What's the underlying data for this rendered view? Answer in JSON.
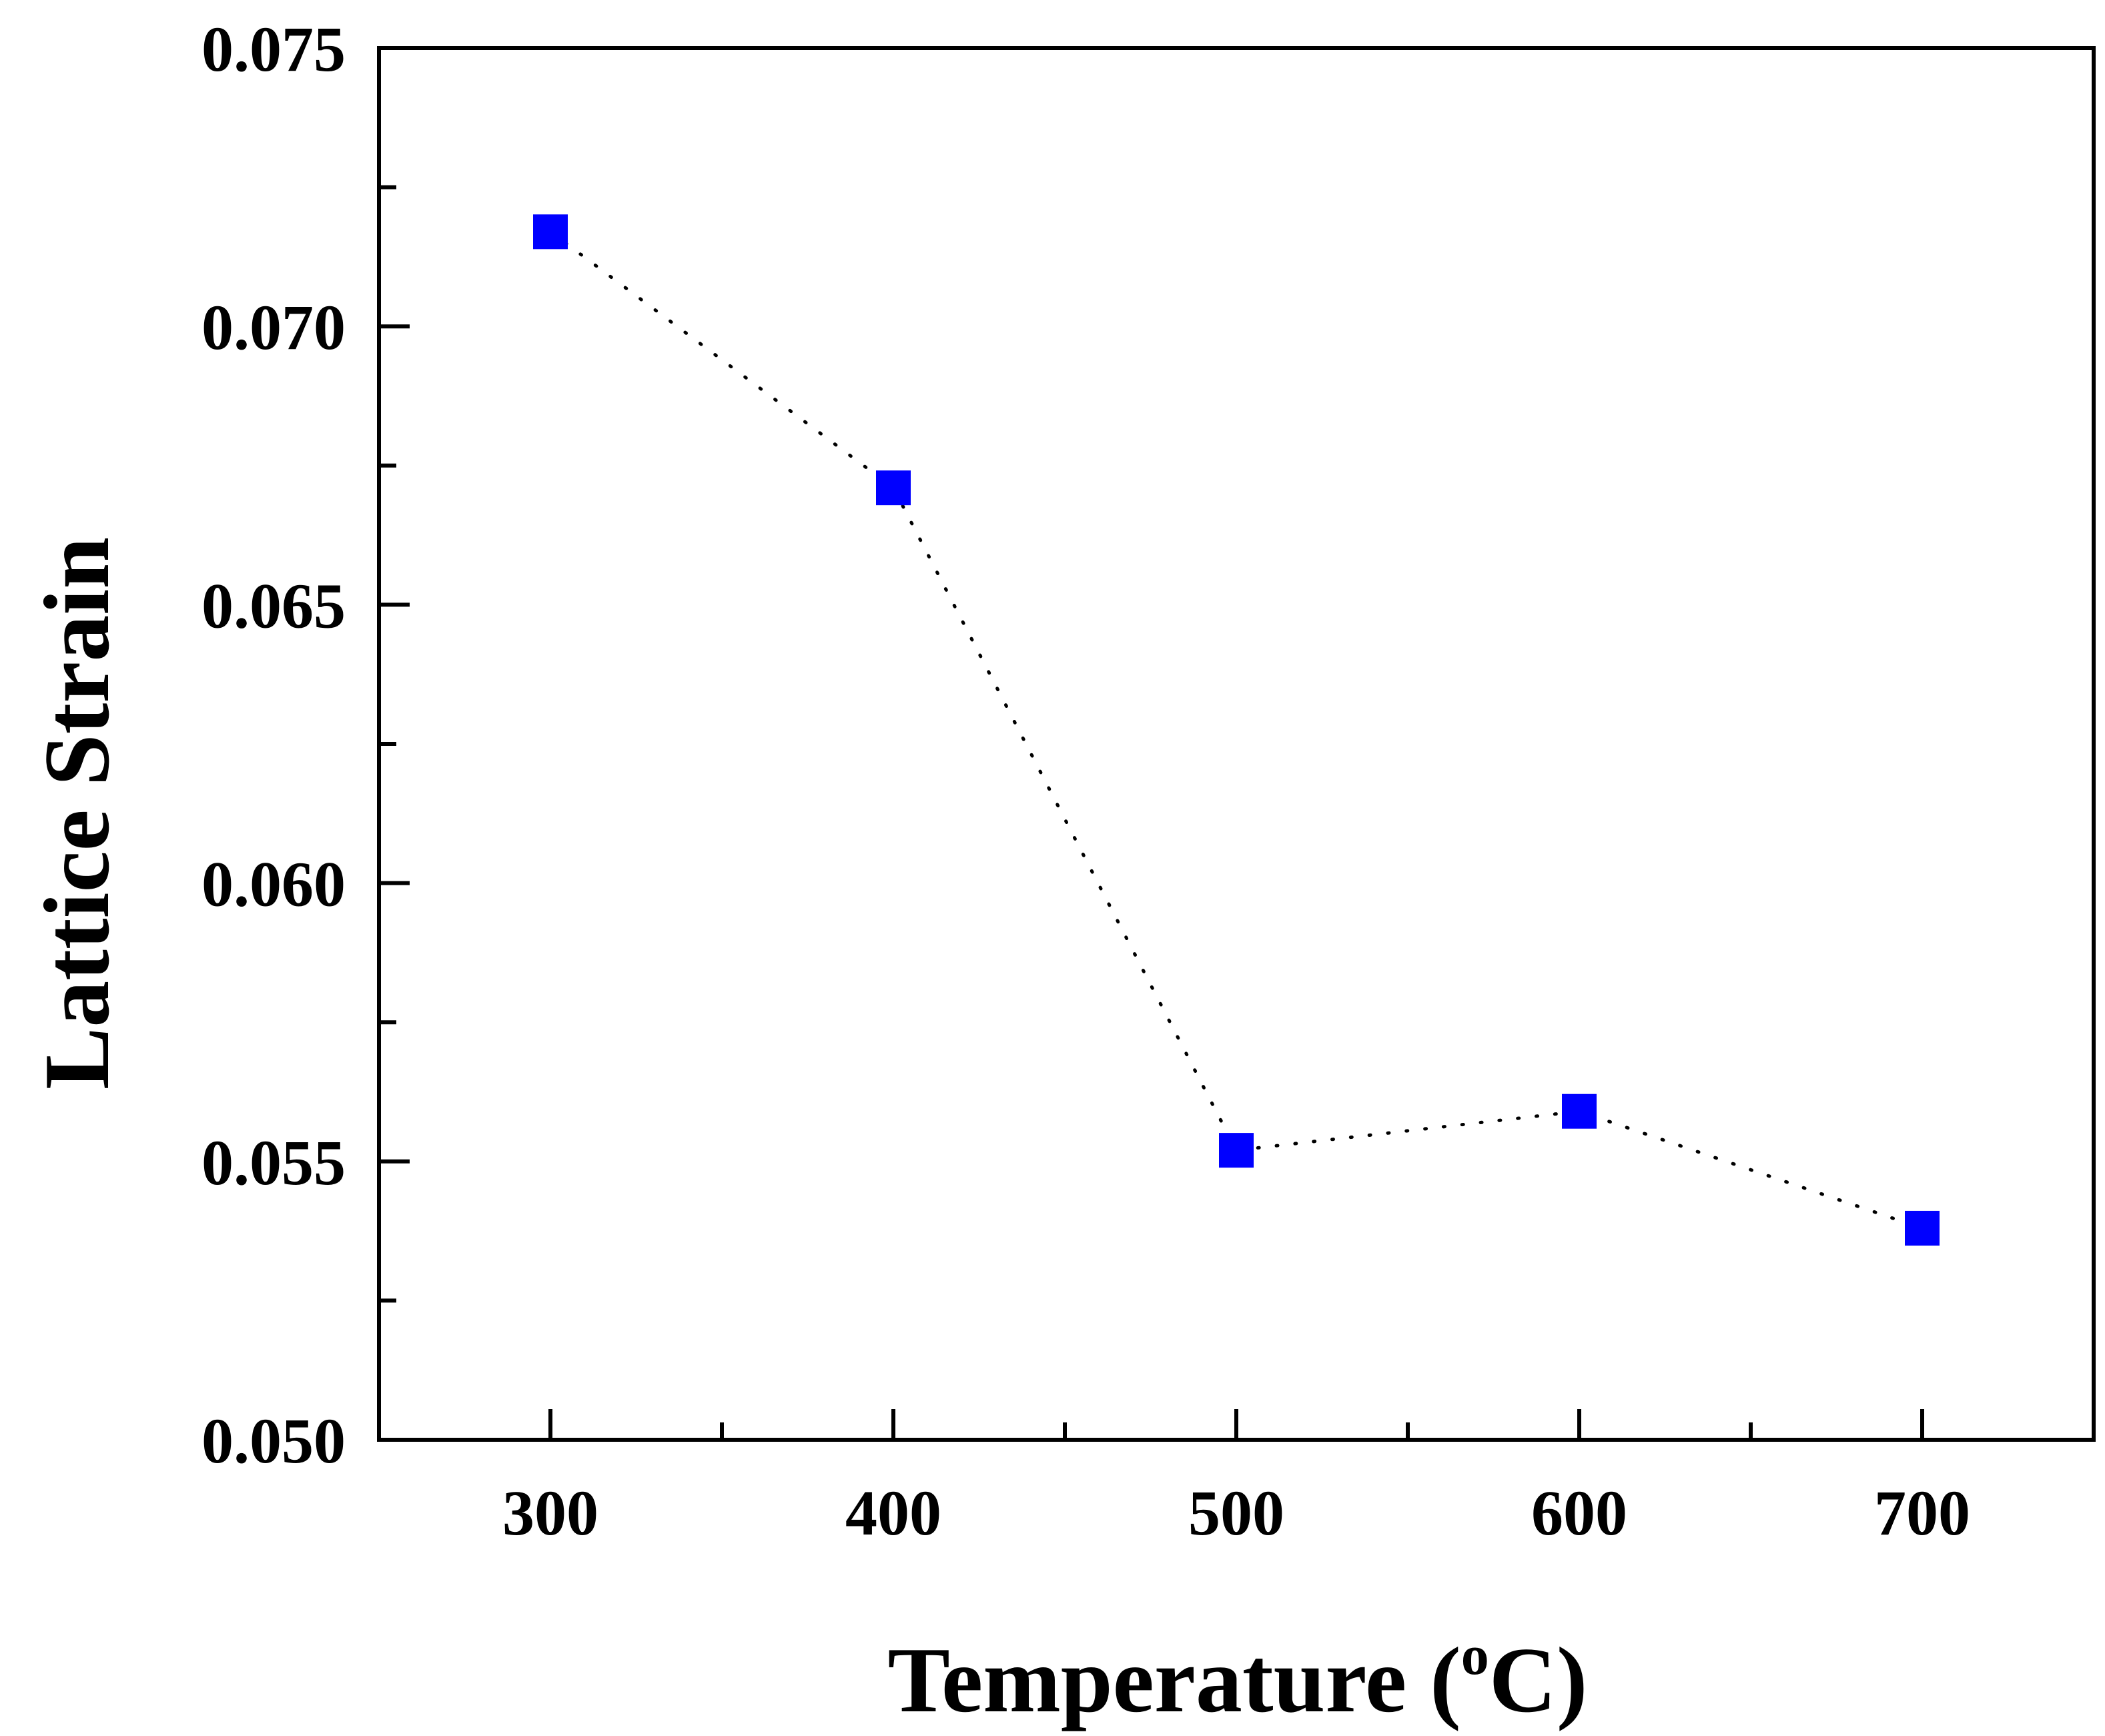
{
  "chart_data": {
    "type": "scatter",
    "title": "",
    "xlabel": "Temperature (",
    "xlabel_sup": "o",
    "xlabel_end": "C)",
    "ylabel": "Lattice Strain",
    "xlim": [
      250,
      750
    ],
    "ylim": [
      0.05,
      0.075
    ],
    "x_ticks": [
      300,
      400,
      500,
      600,
      700
    ],
    "x_tick_labels": [
      "300",
      "400",
      "500",
      "600",
      "700"
    ],
    "x_minor_ticks": [
      350,
      450,
      550,
      650
    ],
    "y_ticks": [
      0.05,
      0.055,
      0.06,
      0.065,
      0.07,
      0.075
    ],
    "y_tick_labels": [
      "0.050",
      "0.055",
      "0.060",
      "0.065",
      "0.070",
      "0.075"
    ],
    "y_minor_ticks": [
      0.0525,
      0.0575,
      0.0625,
      0.0675,
      0.0725
    ],
    "grid": false,
    "series": [
      {
        "name": "Lattice Strain",
        "marker": "square",
        "line_style": "dotted",
        "color": "#0000ff",
        "x": [
          300,
          400,
          500,
          600,
          700
        ],
        "values": [
          0.0717,
          0.0671,
          0.0552,
          0.0559,
          0.0538
        ]
      }
    ]
  }
}
